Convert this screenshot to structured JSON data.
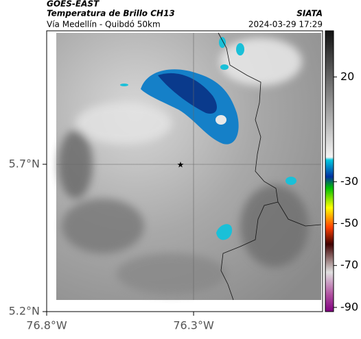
{
  "header": {
    "title": "GOES-EAST",
    "subtitle": "Temperatura de Brillo CH13",
    "route": "Vía Medellín - Quibdó 50km",
    "agency": "SIATA",
    "timestamp": "2024-03-29 17:29"
  },
  "map": {
    "latlim": [
      5.2,
      6.153
    ],
    "lonlim": [
      -76.8,
      -75.861
    ],
    "lat_ticks": [
      {
        "value": 5.7,
        "label": "5.7°N"
      },
      {
        "value": 5.2,
        "label": "5.2°N"
      }
    ],
    "lon_ticks": [
      {
        "value": -76.8,
        "label": "76.8°W"
      },
      {
        "value": -76.3,
        "label": "76.3°W"
      }
    ]
  },
  "colorbar": {
    "lim": [
      -92,
      42
    ],
    "ticks": [
      20,
      -30,
      -50,
      -70,
      -90
    ]
  }
}
